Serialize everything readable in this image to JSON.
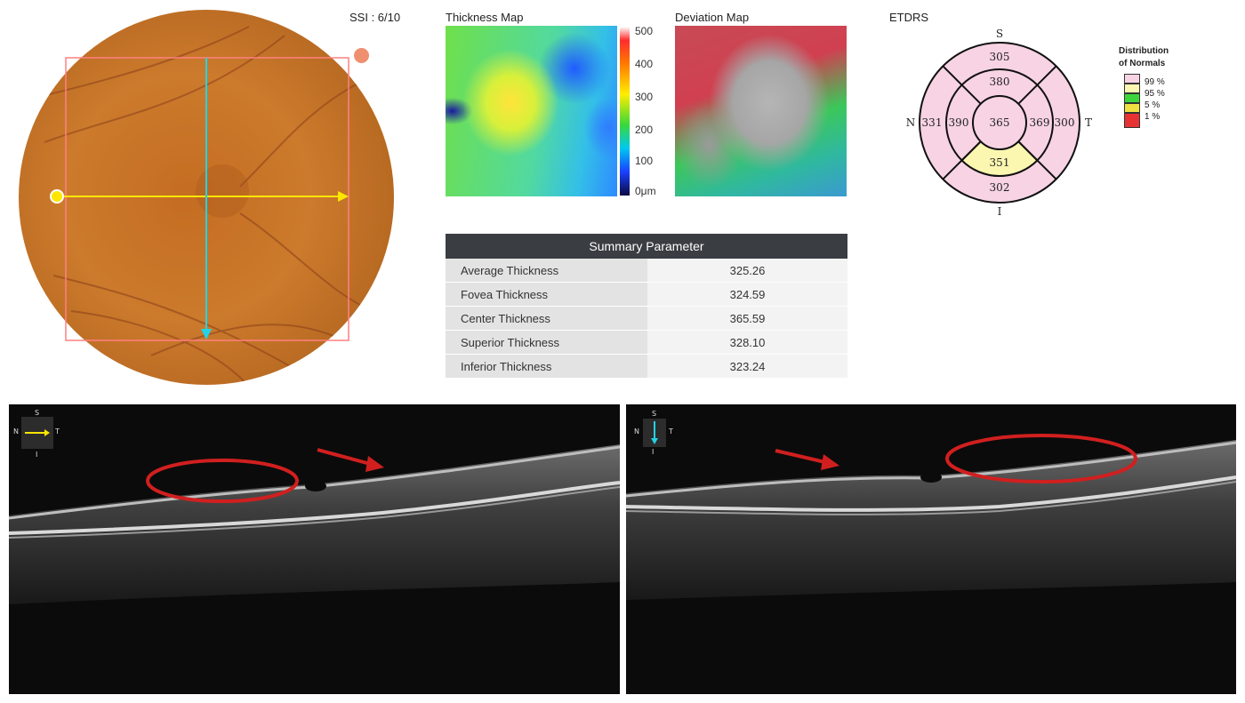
{
  "header": {
    "ssi_text": "SSI : 6/10",
    "thickness_map_title": "Thickness Map",
    "deviation_map_title": "Deviation Map",
    "etdrs_title": "ETDRS"
  },
  "colorbar": {
    "ticks": [
      "500",
      "400",
      "300",
      "200",
      "100",
      "0μm"
    ]
  },
  "etdrs": {
    "labels": {
      "superior": "S",
      "inferior": "I",
      "nasal": "N",
      "temporal": "T"
    },
    "values": {
      "outer_superior": "305",
      "inner_superior": "380",
      "outer_nasal": "331",
      "inner_nasal": "390",
      "center": "365",
      "inner_temporal": "369",
      "outer_temporal": "300",
      "inner_inferior": "351",
      "outer_inferior": "302"
    },
    "colors": {
      "normal": "#f7d3e3",
      "borderline": "#fbf7b0"
    }
  },
  "legend": {
    "title_line1": "Distribution",
    "title_line2": "of Normals",
    "items": [
      {
        "label": "99 %",
        "color": "#f7d3e3"
      },
      {
        "label": "95 %",
        "color": "#fbf7b0"
      },
      {
        "label": "5 %",
        "color": "#3cd63c"
      },
      {
        "label": "1 %",
        "color": "#f0e040"
      },
      {
        "label": "",
        "color": "#e63232"
      }
    ]
  },
  "summary": {
    "title": "Summary Parameter",
    "rows": [
      {
        "label": "Average Thickness",
        "value": "325.26"
      },
      {
        "label": "Fovea Thickness",
        "value": "324.59"
      },
      {
        "label": "Center Thickness",
        "value": "365.59"
      },
      {
        "label": "Superior Thickness",
        "value": "328.10"
      },
      {
        "label": "Inferior Thickness",
        "value": "323.24"
      }
    ]
  },
  "oct_left": {
    "compass": {
      "s": "S",
      "n": "N",
      "t": "T",
      "i": "I"
    },
    "arrow_color": "#ffe600"
  },
  "oct_right": {
    "compass": {
      "s": "S",
      "n": "N",
      "t": "T",
      "i": "I"
    },
    "arrow_color": "#22d3e6"
  },
  "colors": {
    "scan_horizontal": "#ffe600",
    "scan_vertical": "#22d3e6",
    "annotation": "#d11f1f",
    "fundus": "#cc7a2a"
  }
}
